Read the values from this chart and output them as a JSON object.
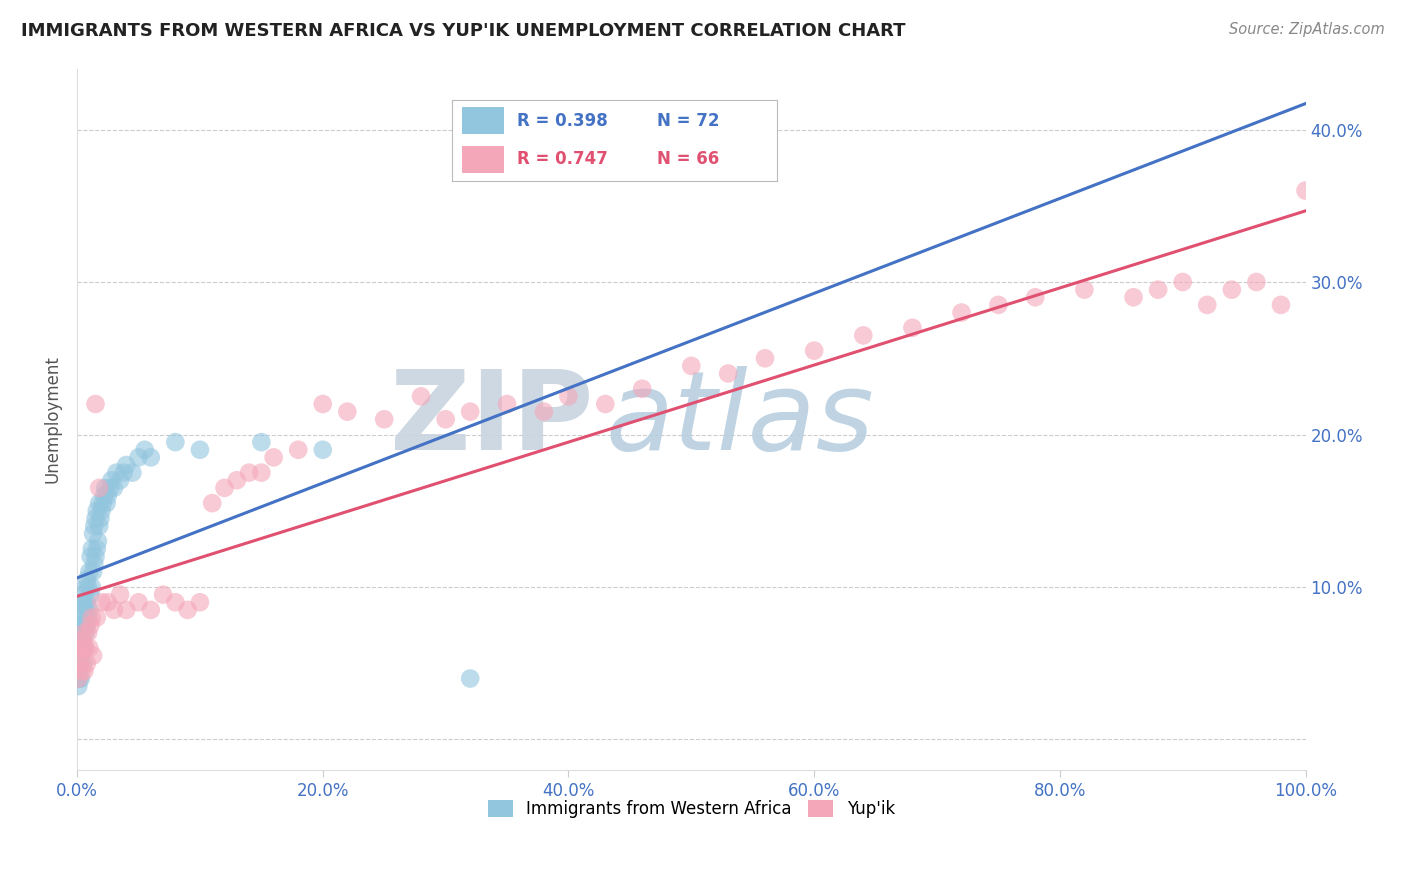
{
  "title": "IMMIGRANTS FROM WESTERN AFRICA VS YUP'IK UNEMPLOYMENT CORRELATION CHART",
  "source": "Source: ZipAtlas.com",
  "ylabel": "Unemployment",
  "watermark_line1": "ZIP",
  "watermark_line2": "atlas",
  "series": [
    {
      "name": "Immigrants from Western Africa",
      "color": "#92c5de",
      "line_color": "#4472c4",
      "R": 0.398,
      "N": 72,
      "x": [
        0.001,
        0.001,
        0.001,
        0.001,
        0.002,
        0.002,
        0.002,
        0.002,
        0.002,
        0.003,
        0.003,
        0.003,
        0.003,
        0.004,
        0.004,
        0.004,
        0.005,
        0.005,
        0.005,
        0.005,
        0.005,
        0.006,
        0.006,
        0.006,
        0.007,
        0.007,
        0.007,
        0.008,
        0.008,
        0.008,
        0.009,
        0.009,
        0.01,
        0.01,
        0.011,
        0.011,
        0.012,
        0.012,
        0.013,
        0.013,
        0.014,
        0.014,
        0.015,
        0.015,
        0.016,
        0.016,
        0.017,
        0.018,
        0.018,
        0.019,
        0.02,
        0.021,
        0.022,
        0.023,
        0.024,
        0.025,
        0.027,
        0.028,
        0.03,
        0.032,
        0.035,
        0.038,
        0.04,
        0.045,
        0.05,
        0.055,
        0.06,
        0.08,
        0.1,
        0.15,
        0.2,
        0.32
      ],
      "y": [
        0.035,
        0.045,
        0.06,
        0.07,
        0.04,
        0.055,
        0.065,
        0.075,
        0.05,
        0.055,
        0.065,
        0.08,
        0.04,
        0.06,
        0.075,
        0.09,
        0.05,
        0.065,
        0.075,
        0.085,
        0.095,
        0.06,
        0.075,
        0.09,
        0.07,
        0.085,
        0.1,
        0.075,
        0.09,
        0.105,
        0.08,
        0.1,
        0.085,
        0.11,
        0.095,
        0.12,
        0.1,
        0.125,
        0.11,
        0.135,
        0.115,
        0.14,
        0.12,
        0.145,
        0.125,
        0.15,
        0.13,
        0.14,
        0.155,
        0.145,
        0.15,
        0.155,
        0.16,
        0.165,
        0.155,
        0.16,
        0.165,
        0.17,
        0.165,
        0.175,
        0.17,
        0.175,
        0.18,
        0.175,
        0.185,
        0.19,
        0.185,
        0.195,
        0.19,
        0.195,
        0.19,
        0.04
      ]
    },
    {
      "name": "Yup'ik",
      "color": "#f4a7b9",
      "line_color": "#e05070",
      "R": 0.747,
      "N": 66,
      "x": [
        0.001,
        0.002,
        0.002,
        0.003,
        0.004,
        0.004,
        0.005,
        0.006,
        0.006,
        0.007,
        0.008,
        0.009,
        0.01,
        0.011,
        0.012,
        0.013,
        0.015,
        0.016,
        0.018,
        0.02,
        0.025,
        0.03,
        0.035,
        0.04,
        0.05,
        0.06,
        0.07,
        0.08,
        0.09,
        0.1,
        0.11,
        0.12,
        0.13,
        0.14,
        0.15,
        0.16,
        0.18,
        0.2,
        0.22,
        0.25,
        0.28,
        0.3,
        0.32,
        0.35,
        0.38,
        0.4,
        0.43,
        0.46,
        0.5,
        0.53,
        0.56,
        0.6,
        0.64,
        0.68,
        0.72,
        0.75,
        0.78,
        0.82,
        0.86,
        0.88,
        0.9,
        0.92,
        0.94,
        0.96,
        0.98,
        1.0
      ],
      "y": [
        0.04,
        0.05,
        0.06,
        0.055,
        0.065,
        0.045,
        0.06,
        0.045,
        0.07,
        0.06,
        0.05,
        0.07,
        0.06,
        0.075,
        0.08,
        0.055,
        0.22,
        0.08,
        0.165,
        0.09,
        0.09,
        0.085,
        0.095,
        0.085,
        0.09,
        0.085,
        0.095,
        0.09,
        0.085,
        0.09,
        0.155,
        0.165,
        0.17,
        0.175,
        0.175,
        0.185,
        0.19,
        0.22,
        0.215,
        0.21,
        0.225,
        0.21,
        0.215,
        0.22,
        0.215,
        0.225,
        0.22,
        0.23,
        0.245,
        0.24,
        0.25,
        0.255,
        0.265,
        0.27,
        0.28,
        0.285,
        0.29,
        0.295,
        0.29,
        0.295,
        0.3,
        0.285,
        0.295,
        0.3,
        0.285,
        0.36
      ]
    }
  ],
  "xlim": [
    0.0,
    1.0
  ],
  "ylim": [
    -0.02,
    0.44
  ],
  "ytick_values": [
    0.0,
    0.1,
    0.2,
    0.3,
    0.4
  ],
  "ytick_labels": [
    "",
    "10.0%",
    "20.0%",
    "30.0%",
    "40.0%"
  ],
  "xtick_values": [
    0.0,
    0.2,
    0.4,
    0.6,
    0.8,
    1.0
  ],
  "xtick_labels": [
    "0.0%",
    "20.0%",
    "40.0%",
    "60.0%",
    "80.0%",
    "100.0%"
  ],
  "background_color": "#ffffff",
  "watermark_color": "#c8d8e8",
  "axis_tick_color": "#4472c4",
  "grid_color": "#cccccc",
  "title_fontsize": 13,
  "legend_R_color_blue": "#4472c4",
  "legend_R_color_pink": "#e05070",
  "legend_N_color": "#e05070"
}
